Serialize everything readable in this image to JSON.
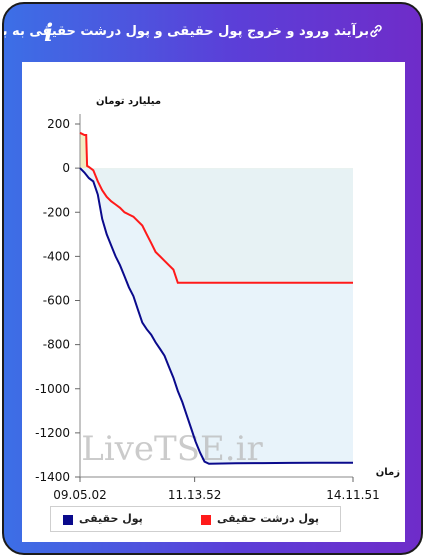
{
  "title": "برآیند ورود و خروج پول حقیقی و پول درشت حقیقی به بازار",
  "info_glyph": "i",
  "icons": {
    "link": "link-icon",
    "info": "info-icon"
  },
  "colors": {
    "real_money": "#0a0a8c",
    "big_real_money": "#ff1a1a",
    "fill_real_money": "#e6f2fa",
    "fill_big_real_money": "#f3edc4"
  },
  "chart_data": {
    "type": "line",
    "ylabel": "میلیارد تومان",
    "xlabel": "زمان",
    "ylim": [
      -1400,
      200
    ],
    "yticks": [
      200,
      0,
      -200,
      -400,
      -600,
      -800,
      -1000,
      -1200,
      -1400
    ],
    "xlim": [
      "09:05:02",
      "14:11:51"
    ],
    "xticks": [
      "09.05.02",
      "11.13.52",
      "14.11.51"
    ],
    "watermark": "LiveTSE.ir",
    "series": [
      {
        "name": "پول حقیقی",
        "color": "#0a0a8c",
        "points": [
          [
            "09:05:02",
            0
          ],
          [
            "09:10",
            -20
          ],
          [
            "09:15",
            -45
          ],
          [
            "09:20",
            -60
          ],
          [
            "09:25",
            -120
          ],
          [
            "09:30",
            -230
          ],
          [
            "09:35",
            -300
          ],
          [
            "09:40",
            -350
          ],
          [
            "09:45",
            -400
          ],
          [
            "09:50",
            -440
          ],
          [
            "09:55",
            -490
          ],
          [
            "10:00",
            -540
          ],
          [
            "10:05",
            -580
          ],
          [
            "10:10",
            -640
          ],
          [
            "10:15",
            -700
          ],
          [
            "10:20",
            -730
          ],
          [
            "10:25",
            -755
          ],
          [
            "10:30",
            -790
          ],
          [
            "10:35",
            -820
          ],
          [
            "10:40",
            -850
          ],
          [
            "10:45",
            -900
          ],
          [
            "10:50",
            -950
          ],
          [
            "10:55",
            -1010
          ],
          [
            "11:00",
            -1060
          ],
          [
            "11:05",
            -1120
          ],
          [
            "11:10",
            -1180
          ],
          [
            "11:15",
            -1240
          ],
          [
            "11:20",
            -1290
          ],
          [
            "11:25",
            -1330
          ],
          [
            "11:30",
            -1340
          ],
          [
            "12:00",
            -1338
          ],
          [
            "12:30",
            -1337
          ],
          [
            "13:00",
            -1336
          ],
          [
            "13:30",
            -1335
          ],
          [
            "14:00",
            -1335
          ],
          [
            "14:11:51",
            -1335
          ]
        ]
      },
      {
        "name": "پول درشت حقیقی",
        "color": "#ff1a1a",
        "points": [
          [
            "09:05:02",
            160
          ],
          [
            "09:10",
            150
          ],
          [
            "09:12",
            150
          ],
          [
            "09:13",
            10
          ],
          [
            "09:15",
            5
          ],
          [
            "09:20",
            -10
          ],
          [
            "09:25",
            -60
          ],
          [
            "09:30",
            -100
          ],
          [
            "09:35",
            -130
          ],
          [
            "09:40",
            -150
          ],
          [
            "09:45",
            -165
          ],
          [
            "09:50",
            -180
          ],
          [
            "09:55",
            -200
          ],
          [
            "10:00",
            -210
          ],
          [
            "10:05",
            -220
          ],
          [
            "10:10",
            -240
          ],
          [
            "10:15",
            -260
          ],
          [
            "10:20",
            -300
          ],
          [
            "10:25",
            -340
          ],
          [
            "10:30",
            -380
          ],
          [
            "10:35",
            -400
          ],
          [
            "10:40",
            -420
          ],
          [
            "10:45",
            -440
          ],
          [
            "10:50",
            -460
          ],
          [
            "10:55",
            -520
          ],
          [
            "11:00",
            -520
          ],
          [
            "11:30",
            -520
          ],
          [
            "12:00",
            -520
          ],
          [
            "12:30",
            -520
          ],
          [
            "13:00",
            -520
          ],
          [
            "13:30",
            -520
          ],
          [
            "14:00",
            -520
          ],
          [
            "14:11:51",
            -520
          ]
        ]
      }
    ],
    "legend": {
      "placement": "bottom"
    }
  }
}
